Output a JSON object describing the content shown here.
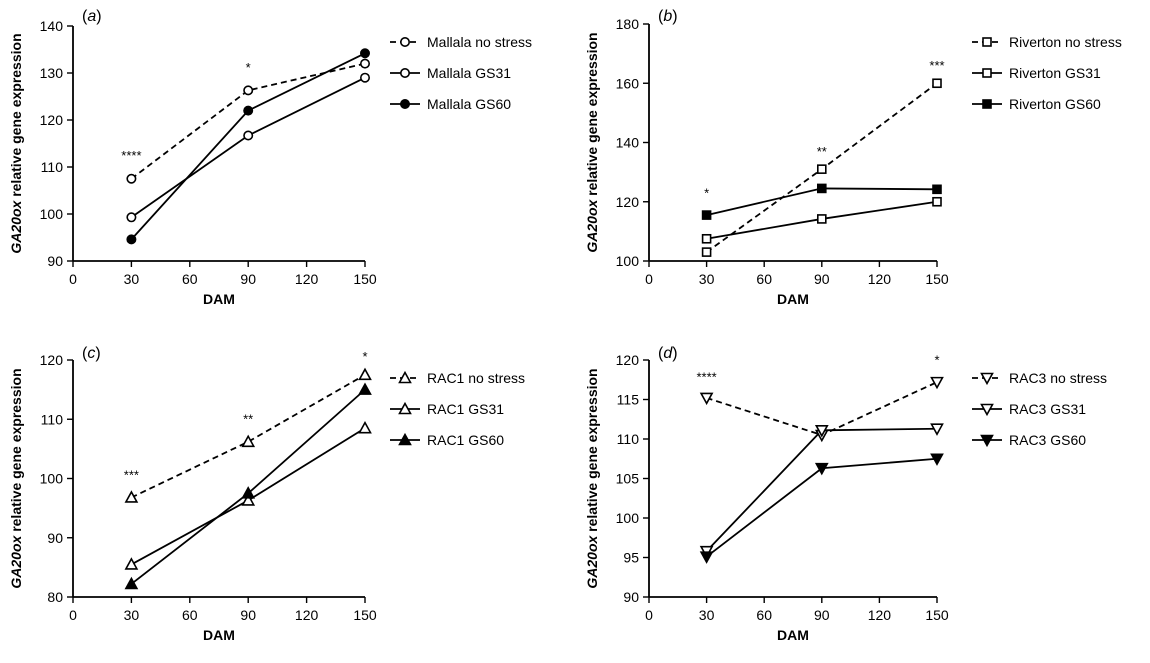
{
  "ylabel_italic": "GA20ox",
  "ylabel_rest": " relative gene expression",
  "chart_data": [
    {
      "type": "line",
      "panel_label": "(a)",
      "marker": "circle",
      "xlabel": "DAM",
      "xlim": [
        0,
        150
      ],
      "xticks": [
        0,
        30,
        60,
        90,
        120,
        150
      ],
      "ylim": [
        90,
        140
      ],
      "yticks": [
        90,
        100,
        110,
        120,
        130,
        140
      ],
      "x": [
        30,
        90,
        150
      ],
      "series": [
        {
          "name": "Mallala no stress",
          "values": [
            107.5,
            126.3,
            132
          ],
          "style": "dashed",
          "fill": "open"
        },
        {
          "name": "Mallala GS31",
          "values": [
            99.3,
            116.7,
            129
          ],
          "style": "solid",
          "fill": "open"
        },
        {
          "name": "Mallala GS60",
          "values": [
            94.6,
            122,
            134.2
          ],
          "style": "solid",
          "fill": "filled"
        }
      ],
      "significance": [
        {
          "x": 30,
          "y": 111.5,
          "text": "****"
        },
        {
          "x": 90,
          "y": 130.2,
          "text": "*"
        }
      ]
    },
    {
      "type": "line",
      "panel_label": "(b)",
      "marker": "square",
      "xlabel": "DAM",
      "xlim": [
        0,
        150
      ],
      "xticks": [
        0,
        30,
        60,
        90,
        120,
        150
      ],
      "ylim": [
        100,
        180
      ],
      "yticks": [
        100,
        120,
        140,
        160,
        180
      ],
      "x": [
        30,
        90,
        150
      ],
      "series": [
        {
          "name": "Riverton no stress",
          "values": [
            103,
            131,
            160
          ],
          "style": "dashed",
          "fill": "open"
        },
        {
          "name": "Riverton GS31",
          "values": [
            107.5,
            114.2,
            120
          ],
          "style": "solid",
          "fill": "open"
        },
        {
          "name": "Riverton GS60",
          "values": [
            115.5,
            124.5,
            124.2
          ],
          "style": "solid",
          "fill": "filled"
        }
      ],
      "significance": [
        {
          "x": 30,
          "y": 121.5,
          "text": "*"
        },
        {
          "x": 90,
          "y": 135.5,
          "text": "**"
        },
        {
          "x": 150,
          "y": 164.5,
          "text": "***"
        }
      ]
    },
    {
      "type": "line",
      "panel_label": "(c)",
      "marker": "triangle-up",
      "xlabel": "DAM",
      "xlim": [
        0,
        150
      ],
      "xticks": [
        0,
        30,
        60,
        90,
        120,
        150
      ],
      "ylim": [
        80,
        120
      ],
      "yticks": [
        80,
        90,
        100,
        110,
        120
      ],
      "x": [
        30,
        90,
        150
      ],
      "series": [
        {
          "name": "RAC1 no stress",
          "values": [
            96.8,
            106.2,
            117.5
          ],
          "style": "dashed",
          "fill": "open"
        },
        {
          "name": "RAC1 GS31",
          "values": [
            85.5,
            96.3,
            108.5
          ],
          "style": "solid",
          "fill": "open"
        },
        {
          "name": "RAC1 GS60",
          "values": [
            82.2,
            97.5,
            115
          ],
          "style": "solid",
          "fill": "filled"
        }
      ],
      "significance": [
        {
          "x": 30,
          "y": 99.8,
          "text": "***"
        },
        {
          "x": 90,
          "y": 109.3,
          "text": "**"
        },
        {
          "x": 150,
          "y": 119.8,
          "text": "*"
        }
      ]
    },
    {
      "type": "line",
      "panel_label": "(d)",
      "marker": "triangle-down",
      "xlabel": "DAM",
      "xlim": [
        0,
        150
      ],
      "xticks": [
        0,
        30,
        60,
        90,
        120,
        150
      ],
      "ylim": [
        90,
        120
      ],
      "yticks": [
        90,
        95,
        100,
        105,
        110,
        115,
        120
      ],
      "x": [
        30,
        90,
        150
      ],
      "series": [
        {
          "name": "RAC3 no stress",
          "values": [
            115.2,
            110.5,
            117.2
          ],
          "style": "dashed",
          "fill": "open"
        },
        {
          "name": "RAC3 GS31",
          "values": [
            95.8,
            111.1,
            111.3
          ],
          "style": "solid",
          "fill": "open"
        },
        {
          "name": "RAC3 GS60",
          "values": [
            95.1,
            106.3,
            107.5
          ],
          "style": "solid",
          "fill": "filled"
        }
      ],
      "significance": [
        {
          "x": 30,
          "y": 117.3,
          "text": "****"
        },
        {
          "x": 150,
          "y": 119.4,
          "text": "*"
        }
      ]
    }
  ]
}
